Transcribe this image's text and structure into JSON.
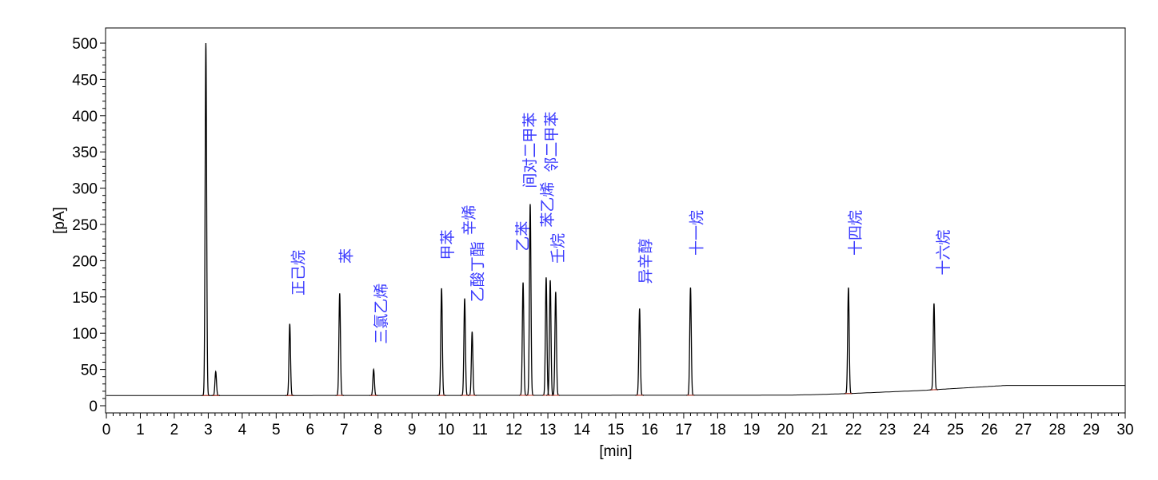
{
  "chart_data": {
    "type": "line",
    "title": "",
    "xlabel": "[min]",
    "ylabel": "[pA]",
    "xlim": [
      0,
      30
    ],
    "ylim": [
      0,
      500
    ],
    "x_ticks": [
      0,
      1,
      2,
      3,
      4,
      5,
      6,
      7,
      8,
      9,
      10,
      11,
      12,
      13,
      14,
      15,
      16,
      17,
      18,
      19,
      20,
      21,
      22,
      23,
      24,
      25,
      26,
      27,
      28,
      29,
      30
    ],
    "y_ticks": [
      0,
      50,
      100,
      150,
      200,
      250,
      300,
      350,
      400,
      450,
      500
    ],
    "grid": false,
    "legend": "none",
    "colors": {
      "trace": "#000000",
      "labels": "#3a3aff",
      "baseline_marks": "#c0392b"
    },
    "baseline": [
      [
        0,
        14
      ],
      [
        20,
        14.5
      ],
      [
        21,
        15.5
      ],
      [
        22,
        17
      ],
      [
        24,
        21
      ],
      [
        26.5,
        28
      ],
      [
        30,
        28
      ]
    ],
    "peaks": [
      {
        "time": 2.93,
        "height": 500,
        "label": ""
      },
      {
        "time": 3.22,
        "height": 47,
        "label": ""
      },
      {
        "time": 5.4,
        "height": 113,
        "label": "正己烷"
      },
      {
        "time": 6.87,
        "height": 155,
        "label": "苯"
      },
      {
        "time": 7.87,
        "height": 50,
        "label": "三氯乙烯"
      },
      {
        "time": 9.87,
        "height": 162,
        "label": "甲苯"
      },
      {
        "time": 10.55,
        "height": 148,
        "label": "辛烯"
      },
      {
        "time": 10.77,
        "height": 102,
        "label": "乙酸丁酯"
      },
      {
        "time": 12.27,
        "height": 170,
        "label": "乙苯"
      },
      {
        "time": 12.48,
        "height": 278,
        "label": "间对二甲苯"
      },
      {
        "time": 12.95,
        "height": 177,
        "label": "苯乙烯"
      },
      {
        "time": 13.07,
        "height": 173,
        "label": "邻二甲苯"
      },
      {
        "time": 13.23,
        "height": 157,
        "label": "壬烷"
      },
      {
        "time": 15.7,
        "height": 134,
        "label": "异辛醇"
      },
      {
        "time": 17.2,
        "height": 163,
        "label": "十一烷"
      },
      {
        "time": 21.85,
        "height": 163,
        "label": "十四烷"
      },
      {
        "time": 24.37,
        "height": 141,
        "label": "十六烷"
      }
    ]
  }
}
